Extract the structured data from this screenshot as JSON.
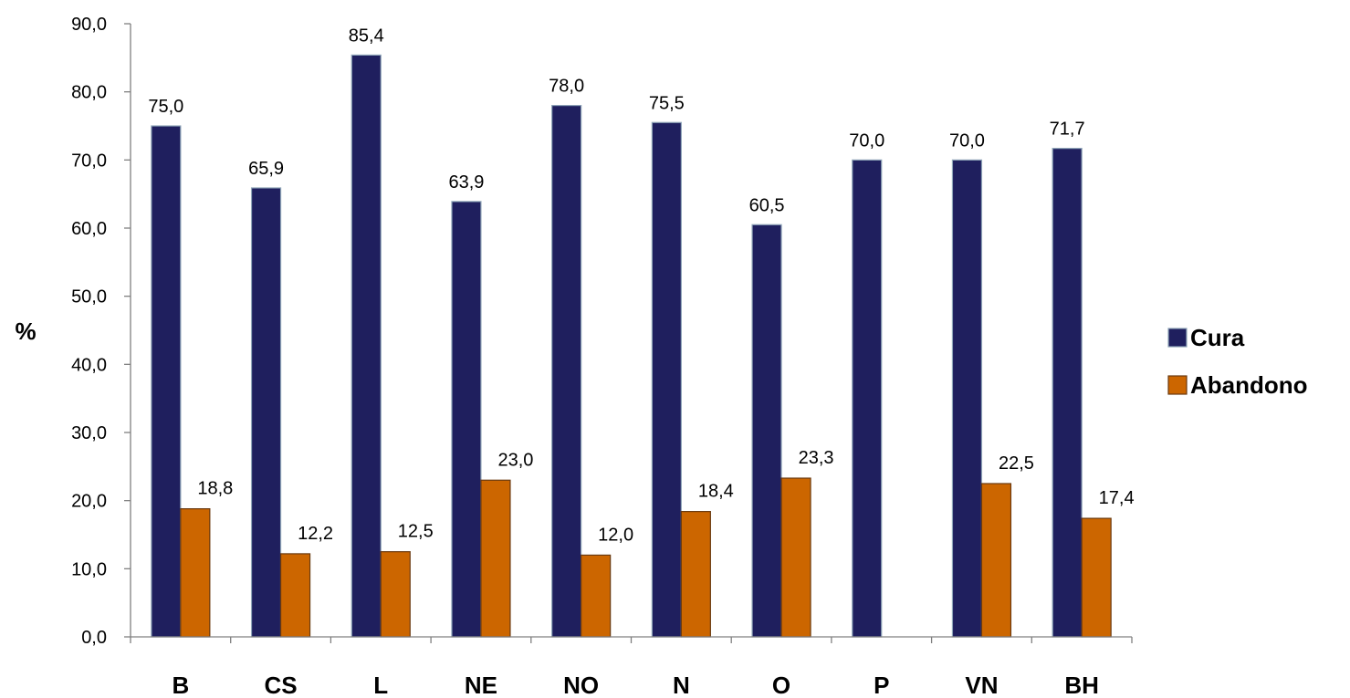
{
  "chart_data": {
    "type": "bar",
    "ylabel": "%",
    "xlabel": "",
    "ylim": [
      0,
      90
    ],
    "ytick_step": 10,
    "categories": [
      "B",
      "CS",
      "L",
      "NE",
      "NO",
      "N",
      "O",
      "P",
      "VN",
      "BH"
    ],
    "series": [
      {
        "name": "Cura",
        "color": "#1f1f5e",
        "values": [
          75.0,
          65.9,
          85.4,
          63.9,
          78.0,
          75.5,
          60.5,
          70.0,
          70.0,
          71.7
        ],
        "labels": [
          "75,0",
          "65,9",
          "85,4",
          "63,9",
          "78,0",
          "75,5",
          "60,5",
          "70,0",
          "70,0",
          "71,7"
        ]
      },
      {
        "name": "Abandono",
        "color": "#cc6600",
        "values": [
          18.8,
          12.2,
          12.5,
          23.0,
          12.0,
          18.4,
          23.3,
          null,
          22.5,
          17.4
        ],
        "labels": [
          "18,8",
          "12,2",
          "12,5",
          "23,0",
          "12,0",
          "18,4",
          "23,3",
          "",
          "22,5",
          "17,4"
        ]
      }
    ],
    "legend_position": "right",
    "grid": false
  }
}
